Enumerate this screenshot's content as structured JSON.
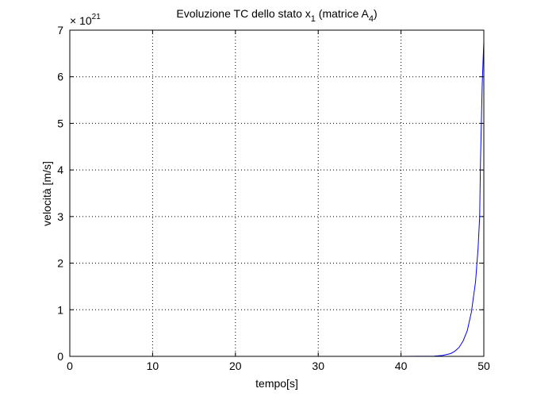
{
  "chart_data": {
    "type": "line",
    "title": {
      "prefix": "Evoluzione TC dello stato x",
      "sub1": "1",
      "middle": " (matrice A",
      "sub2": "4",
      "suffix": ")"
    },
    "xlabel": "tempo[s]",
    "ylabel": "velocità [m/s]",
    "y_exponent": {
      "base": "× 10",
      "power": "21"
    },
    "xlim": [
      0,
      50
    ],
    "ylim": [
      0,
      7
    ],
    "xticks": [
      0,
      10,
      20,
      30,
      40,
      50
    ],
    "yticks": [
      0,
      1,
      2,
      3,
      4,
      5,
      6,
      7
    ],
    "grid": true,
    "line_color": "#0000ff",
    "series": [
      {
        "x": [
          13,
          20,
          30,
          40,
          44,
          45,
          46,
          46.5,
          47,
          47.5,
          48,
          48.5,
          49,
          49.3,
          49.5,
          49.6,
          49.7,
          49.8,
          49.9,
          50
        ],
        "y": [
          0,
          0,
          0,
          0,
          0.005,
          0.02,
          0.06,
          0.11,
          0.19,
          0.33,
          0.55,
          0.95,
          1.6,
          2.3,
          3.0,
          4.2,
          5.0,
          5.8,
          6.3,
          6.75
        ]
      }
    ]
  }
}
